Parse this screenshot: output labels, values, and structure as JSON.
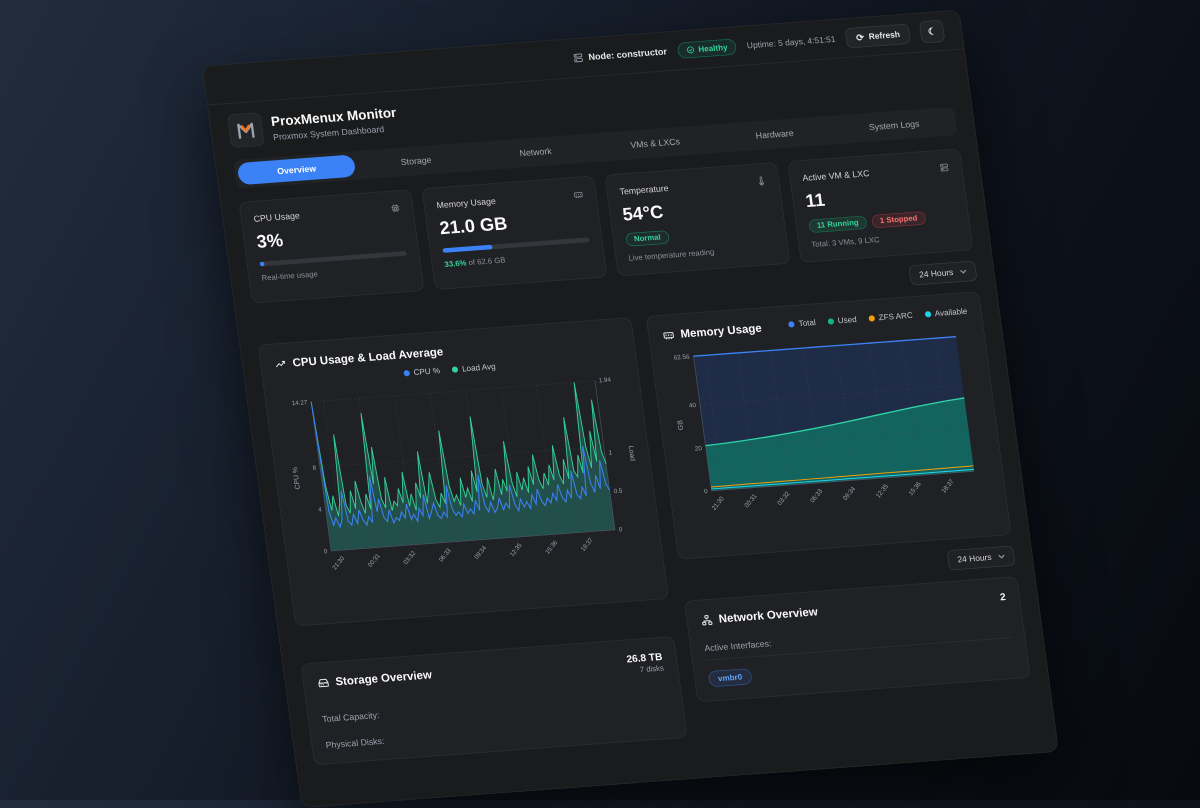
{
  "topbar": {
    "node_label": "Node: constructor",
    "health": "Healthy",
    "uptime": "Uptime: 5 days, 4:51:51",
    "refresh_label": "Refresh"
  },
  "header": {
    "title": "ProxMenux Monitor",
    "subtitle": "Proxmox System Dashboard"
  },
  "tabs": [
    {
      "label": "Overview",
      "active": true
    },
    {
      "label": "Storage",
      "active": false
    },
    {
      "label": "Network",
      "active": false
    },
    {
      "label": "VMs & LXCs",
      "active": false
    },
    {
      "label": "Hardware",
      "active": false
    },
    {
      "label": "System Logs",
      "active": false
    }
  ],
  "time_range": {
    "selected": "24 Hours"
  },
  "stats": {
    "cpu": {
      "title": "CPU Usage",
      "value": "3%",
      "percent": 3,
      "caption": "Real-time usage"
    },
    "memory": {
      "title": "Memory Usage",
      "value": "21.0 GB",
      "percent": 33.6,
      "caption_pct": "33.6%",
      "caption_rest": " of 62.6 GB"
    },
    "temperature": {
      "title": "Temperature",
      "value": "54°C",
      "badge": "Normal",
      "caption": "Live temperature reading"
    },
    "vms": {
      "title": "Active VM & LXC",
      "value": "11",
      "running": "11 Running",
      "stopped": "1 Stopped",
      "caption": "Total: 3 VMs, 9 LXC"
    }
  },
  "storage": {
    "title": "Storage Overview",
    "total_value": "26.8 TB",
    "disk_count": "7 disks",
    "rows": [
      "Total Capacity:",
      "Physical Disks:"
    ]
  },
  "network": {
    "title": "Network Overview",
    "count": "2",
    "label": "Active Interfaces:",
    "interface": "vmbr0"
  },
  "colors": {
    "accent": "#3b82f6",
    "green": "#34d399",
    "red": "#f87171",
    "orange": "#f59e0b",
    "cyan": "#22d3ee"
  },
  "chart_data": [
    {
      "type": "line",
      "title": "CPU Usage & Load Average",
      "x_ticks": [
        "21:30",
        "00:31",
        "03:32",
        "06:33",
        "09:34",
        "12:35",
        "15:36",
        "18:37"
      ],
      "y_left": {
        "label": "CPU %",
        "ticks": [
          0,
          4,
          8
        ],
        "max": 14.27
      },
      "y_right": {
        "label": "Load",
        "ticks": [
          0,
          0.5,
          1
        ],
        "max": 1.94
      },
      "legend": [
        {
          "name": "CPU %",
          "color": "#3b82f6"
        },
        {
          "name": "Load Avg",
          "color": "#34d399"
        }
      ],
      "grid": true,
      "series": [
        {
          "name": "CPU %",
          "axis": "left",
          "color": "#3b82f6",
          "values": [
            14.27,
            3.8,
            2.4,
            3.1,
            2.2,
            2.9,
            5.6,
            2.7,
            2.3,
            3.3,
            2.4,
            3.7,
            2.7,
            2.2,
            3.0,
            2.4,
            6.8,
            3.4,
            4.6,
            2.8,
            2.4,
            3.5,
            2.2,
            2.7,
            2.4,
            3.2,
            2.6,
            3.9,
            2.4,
            2.9,
            2.2,
            3.4,
            2.7,
            4.7,
            2.4,
            3.0,
            3.8,
            2.6,
            2.3,
            2.9,
            2.4,
            5.4,
            3.1,
            2.5,
            2.8,
            2.3,
            3.5,
            2.6,
            3.0,
            2.5,
            3.8,
            2.8,
            6.2,
            3.2,
            2.6,
            3.5,
            2.5,
            2.9,
            3.8,
            2.7,
            3.3,
            2.8,
            5.0,
            3.1,
            2.5,
            3.6,
            2.8,
            3.3,
            2.6,
            3.9,
            3.0,
            4.4,
            3.2,
            2.8,
            3.5,
            3.0,
            3.9,
            3.2,
            4.7,
            3.4,
            3.0,
            4.1,
            3.3,
            5.9,
            3.6,
            3.2,
            4.3,
            3.4,
            8.2,
            4.6,
            3.7,
            5.3,
            4.0,
            6.7,
            4.4,
            3.8
          ]
        },
        {
          "name": "Load Avg",
          "axis": "right",
          "color": "#34d399",
          "values": [
            1.94,
            0.85,
            0.52,
            0.71,
            0.44,
            0.62,
            1.5,
            0.58,
            0.47,
            0.76,
            0.52,
            0.88,
            0.61,
            0.45,
            0.7,
            0.5,
            1.75,
            0.82,
            1.3,
            0.62,
            0.5,
            0.9,
            0.46,
            0.58,
            0.52,
            0.74,
            0.55,
            0.95,
            0.5,
            0.66,
            0.44,
            0.8,
            0.6,
            1.2,
            0.52,
            0.7,
            0.92,
            0.56,
            0.46,
            0.64,
            0.5,
            1.45,
            0.72,
            0.52,
            0.6,
            0.46,
            0.82,
            0.56,
            0.68,
            0.5,
            0.9,
            0.62,
            1.6,
            0.72,
            0.54,
            0.8,
            0.5,
            0.66,
            0.9,
            0.56,
            0.76,
            0.6,
            1.25,
            0.7,
            0.52,
            0.84,
            0.6,
            0.76,
            0.56,
            0.9,
            0.66,
            1.05,
            0.72,
            0.6,
            0.8,
            0.64,
            0.9,
            0.7,
            1.15,
            0.76,
            0.64,
            0.96,
            0.7,
            1.5,
            0.8,
            0.72,
            1.0,
            0.76,
            1.94,
            1.1,
            0.82,
            1.3,
            0.9,
            1.7,
            1.02,
            0.86
          ]
        }
      ]
    },
    {
      "type": "area",
      "title": "Memory Usage",
      "x_ticks": [
        "21:30",
        "00:31",
        "03:32",
        "06:33",
        "09:34",
        "12:35",
        "15:36",
        "18:37"
      ],
      "y": {
        "label": "GB",
        "ticks": [
          0,
          20,
          40
        ],
        "max": 62.56
      },
      "legend": [
        {
          "name": "Total",
          "color": "#3b82f6"
        },
        {
          "name": "Used",
          "color": "#10b981"
        },
        {
          "name": "ZFS ARC",
          "color": "#f59e0b"
        },
        {
          "name": "Available",
          "color": "#22d3ee"
        }
      ],
      "grid": true,
      "series": [
        {
          "name": "Total",
          "color": "#3b82f6",
          "values": [
            62.56,
            62.56,
            62.56,
            62.56,
            62.56,
            62.56,
            62.56,
            62.56,
            62.56,
            62.56,
            62.56,
            62.56,
            62.56,
            62.56,
            62.56,
            62.56
          ]
        },
        {
          "name": "Used",
          "color": "#2fd3a5",
          "values": [
            21.0,
            21.4,
            21.9,
            22.5,
            23.2,
            24.0,
            24.9,
            25.9,
            27.0,
            28.1,
            29.3,
            30.4,
            31.5,
            32.5,
            33.4,
            34.1
          ]
        },
        {
          "name": "ZFS ARC",
          "color": "#f59e0b",
          "values": [
            1.8,
            1.8,
            1.9,
            1.9,
            2.0,
            2.0,
            2.1,
            2.1,
            2.2,
            2.2,
            2.3,
            2.3,
            2.4,
            2.4,
            2.5,
            2.5
          ]
        },
        {
          "name": "Available",
          "color": "#22d3ee",
          "values": [
            0.9,
            0.9,
            0.9,
            0.9,
            0.9,
            0.9,
            0.9,
            0.9,
            0.9,
            0.9,
            0.9,
            0.9,
            0.9,
            0.9,
            0.9,
            0.9
          ]
        }
      ]
    }
  ]
}
